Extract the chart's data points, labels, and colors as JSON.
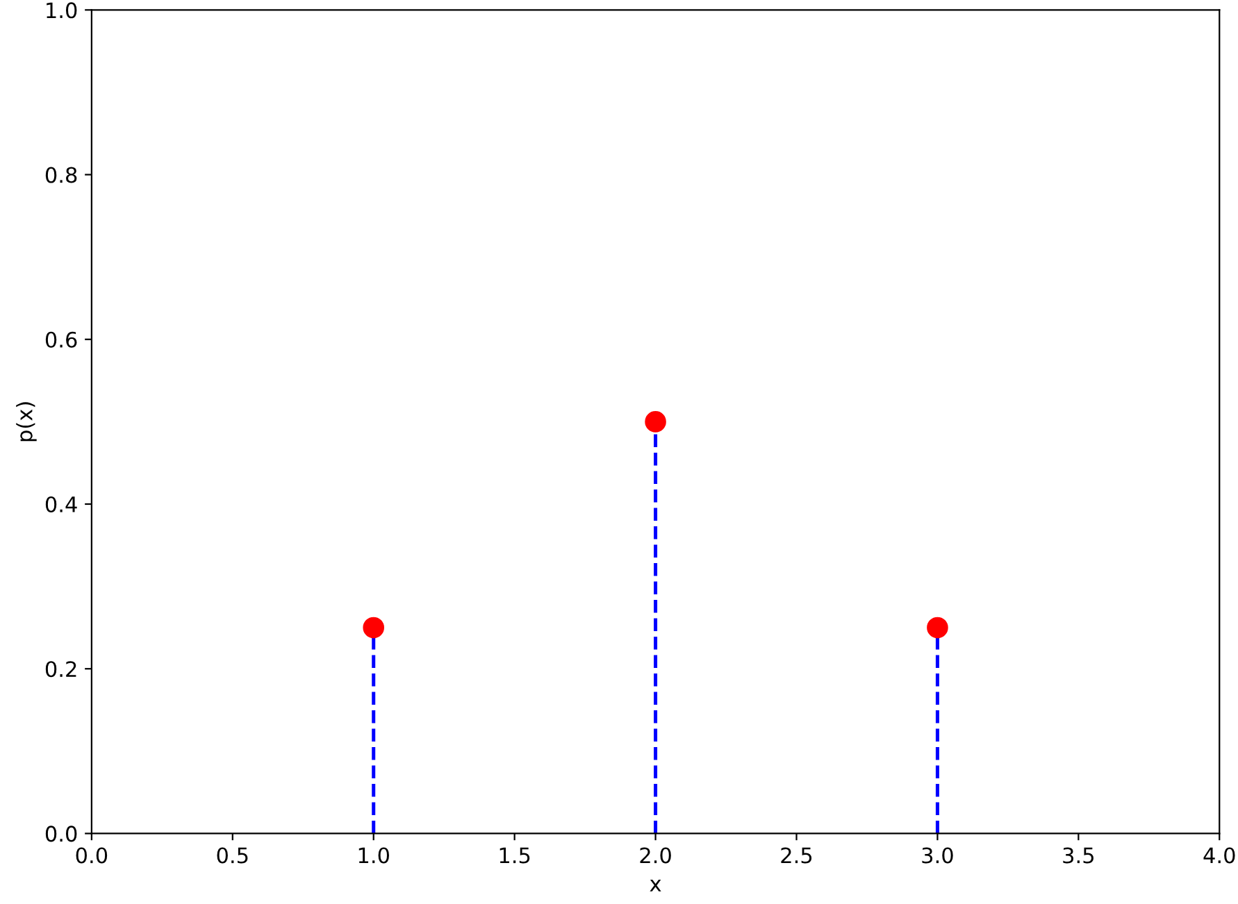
{
  "chart_data": {
    "type": "lollipop",
    "xlabel": "x",
    "ylabel": "p(x)",
    "x": [
      1,
      2,
      3
    ],
    "values": [
      0.25,
      0.5,
      0.25
    ],
    "color": "#ff0000",
    "marker": "circle",
    "line_style": "dashed",
    "xlim": [
      0,
      4
    ],
    "xticks": [
      {
        "value": 0,
        "label": "0.0"
      },
      {
        "value": 0.5,
        "label": "0.5"
      },
      {
        "value": 1,
        "label": "1.0"
      },
      {
        "value": 1.5,
        "label": "1.5"
      },
      {
        "value": 2,
        "label": "2.0"
      },
      {
        "value": 2.5,
        "label": "2.5"
      },
      {
        "value": 3,
        "label": "3.0"
      },
      {
        "value": 3.5,
        "label": "3.5"
      },
      {
        "value": 4,
        "label": "4.0"
      }
    ],
    "ylim": [
      0,
      1
    ],
    "yticks": [
      {
        "value": 0,
        "label": "0.0"
      },
      {
        "value": 0.2,
        "label": "0.2"
      },
      {
        "value": 0.4,
        "label": "0.4"
      },
      {
        "value": 0.6,
        "label": "0.6"
      },
      {
        "value": 0.8,
        "label": "0.8"
      },
      {
        "value": 1,
        "label": "1.0"
      }
    ],
    "grid": false
  }
}
